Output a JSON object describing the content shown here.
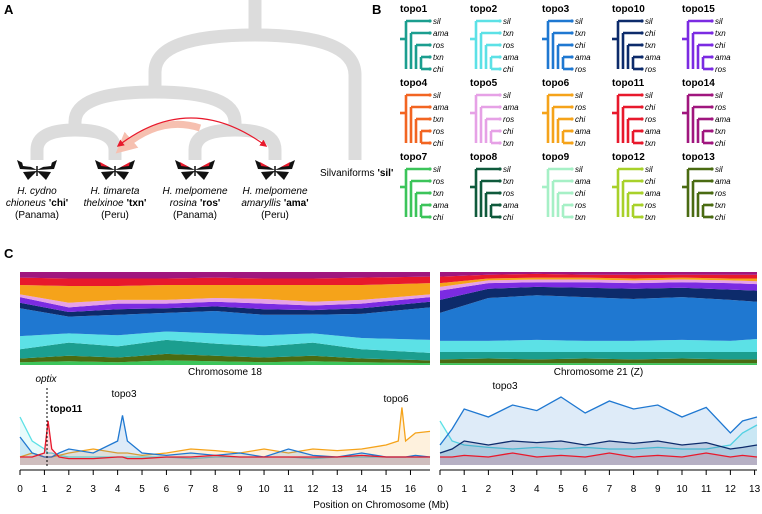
{
  "panel_a": {
    "label": "A",
    "taxa": [
      {
        "species": "H. cydno",
        "subspecies": "chioneus",
        "code": "'chi'",
        "location": "(Panama)"
      },
      {
        "species": "H. timareta",
        "subspecies": "thelxinoe",
        "code": "'txn'",
        "location": "(Peru)"
      },
      {
        "species": "H. melpomene",
        "subspecies": "rosina",
        "code": "'ros'",
        "location": "(Panama)"
      },
      {
        "species": "H. melpomene",
        "subspecies": "amaryllis",
        "code": "'ama'",
        "location": "(Peru)"
      }
    ],
    "outgroup": "Silvaniforms",
    "outgroup_code": "'sil'"
  },
  "panel_b": {
    "label": "B",
    "topologies": [
      {
        "name": "topo1",
        "color": "#1b9e8f",
        "tips": [
          "sil",
          "ama",
          "ros",
          "txn",
          "chi"
        ]
      },
      {
        "name": "topo2",
        "color": "#5ce1e6",
        "tips": [
          "sil",
          "txn",
          "ros",
          "ama",
          "chi"
        ]
      },
      {
        "name": "topo3",
        "color": "#1f78d1",
        "tips": [
          "sil",
          "txn",
          "chi",
          "ama",
          "ros"
        ]
      },
      {
        "name": "topo10",
        "color": "#0d2b6b",
        "tips": [
          "sil",
          "chi",
          "txn",
          "ama",
          "ros"
        ]
      },
      {
        "name": "topo15",
        "color": "#7b2be2",
        "tips": [
          "sil",
          "txn",
          "chi",
          "ama",
          "ros"
        ]
      },
      {
        "name": "topo4",
        "color": "#f26522",
        "tips": [
          "sil",
          "ama",
          "txn",
          "ros",
          "chi"
        ]
      },
      {
        "name": "topo5",
        "color": "#e6a1e6",
        "tips": [
          "sil",
          "ama",
          "ros",
          "chi",
          "txn"
        ]
      },
      {
        "name": "topo6",
        "color": "#f5a31a",
        "tips": [
          "sil",
          "ros",
          "chi",
          "ama",
          "txn"
        ]
      },
      {
        "name": "topo11",
        "color": "#e8192c",
        "tips": [
          "sil",
          "chi",
          "ros",
          "ama",
          "txn"
        ]
      },
      {
        "name": "topo14",
        "color": "#a0167e",
        "tips": [
          "sil",
          "ros",
          "ama",
          "txn",
          "chi"
        ]
      },
      {
        "name": "topo7",
        "color": "#3cc45a",
        "tips": [
          "sil",
          "ros",
          "txn",
          "ama",
          "chi"
        ]
      },
      {
        "name": "topo8",
        "color": "#0f5a3c",
        "tips": [
          "sil",
          "txn",
          "ros",
          "ama",
          "chi"
        ]
      },
      {
        "name": "topo9",
        "color": "#a6f0c6",
        "tips": [
          "sil",
          "ama",
          "chi",
          "ros",
          "txn"
        ]
      },
      {
        "name": "topo12",
        "color": "#a8d12a",
        "tips": [
          "sil",
          "chi",
          "ama",
          "ros",
          "txn"
        ]
      },
      {
        "name": "topo13",
        "color": "#4a6b12",
        "tips": [
          "sil",
          "ama",
          "ros",
          "txn",
          "chi"
        ]
      }
    ]
  },
  "panel_c": {
    "label": "C",
    "x_label": "Position on Chromosome (Mb)",
    "annotations": {
      "gene": "optix",
      "left_topo11": "topo11",
      "left_topo3": "topo3",
      "left_topo6": "topo6",
      "right_topo3": "topo3"
    },
    "chromosomes": [
      {
        "title": "Chromosome 18",
        "xlim": [
          0,
          16.8
        ],
        "xticks": [
          0,
          1,
          2,
          3,
          4,
          5,
          6,
          7,
          8,
          9,
          10,
          11,
          12,
          13,
          14,
          15,
          16
        ],
        "stack": {
          "type": "stacked_area",
          "ylim": [
            0,
            100
          ],
          "x": [
            0,
            2,
            4,
            6,
            8,
            10,
            12,
            14,
            16.8
          ],
          "series": [
            {
              "color": "#3cc45a",
              "values": [
                3,
                4,
                3,
                5,
                4,
                3,
                4,
                3,
                2
              ]
            },
            {
              "color": "#4a6b12",
              "values": [
                4,
                6,
                5,
                7,
                6,
                5,
                6,
                4,
                3
              ]
            },
            {
              "color": "#1b9e8f",
              "values": [
                10,
                14,
                12,
                15,
                13,
                12,
                14,
                10,
                8
              ]
            },
            {
              "color": "#5ce1e6",
              "values": [
                14,
                10,
                12,
                9,
                11,
                12,
                10,
                12,
                14
              ]
            },
            {
              "color": "#1f78d1",
              "values": [
                30,
                18,
                22,
                20,
                24,
                22,
                20,
                26,
                35
              ]
            },
            {
              "color": "#0d2b6b",
              "values": [
                6,
                5,
                6,
                5,
                5,
                6,
                5,
                6,
                6
              ]
            },
            {
              "color": "#7b2be2",
              "values": [
                6,
                5,
                6,
                5,
                5,
                6,
                5,
                5,
                5
              ]
            },
            {
              "color": "#e6a1e6",
              "values": [
                3,
                5,
                4,
                4,
                4,
                5,
                4,
                4,
                3
              ]
            },
            {
              "color": "#f5a31a",
              "values": [
                10,
                18,
                15,
                16,
                14,
                15,
                18,
                16,
                12
              ]
            },
            {
              "color": "#e8192c",
              "values": [
                8,
                8,
                8,
                7,
                8,
                7,
                7,
                8,
                7
              ]
            },
            {
              "color": "#a0167e",
              "values": [
                6,
                7,
                7,
                7,
                6,
                7,
                7,
                6,
                5
              ]
            }
          ]
        },
        "lines": {
          "type": "line",
          "ylim": [
            0,
            1
          ],
          "x": [
            0,
            0.5,
            1,
            1.15,
            1.3,
            1.6,
            2,
            3,
            4,
            4.2,
            4.4,
            5,
            6,
            7,
            8,
            9,
            10,
            11,
            12,
            13,
            14,
            15,
            15.5,
            15.65,
            15.8,
            16.2,
            16.8
          ],
          "series": [
            {
              "color": "#5ce1e6",
              "values": [
                0.6,
                0.3,
                0.2,
                0.15,
                0.15,
                0.12,
                0.1,
                0.1,
                0.1,
                0.1,
                0.1,
                0.1,
                0.1,
                0.08,
                0.1,
                0.1,
                0.1,
                0.1,
                0.08,
                0.1,
                0.1,
                0.1,
                0.1,
                0.1,
                0.1,
                0.1,
                0.1
              ]
            },
            {
              "color": "#f5a31a",
              "values": [
                0.1,
                0.15,
                0.1,
                0.1,
                0.1,
                0.12,
                0.15,
                0.2,
                0.15,
                0.15,
                0.15,
                0.12,
                0.15,
                0.2,
                0.18,
                0.15,
                0.2,
                0.15,
                0.2,
                0.18,
                0.2,
                0.25,
                0.3,
                0.72,
                0.3,
                0.4,
                0.42
              ]
            },
            {
              "color": "#1f78d1",
              "values": [
                0.35,
                0.15,
                0.1,
                0.1,
                0.1,
                0.15,
                0.2,
                0.15,
                0.3,
                0.62,
                0.3,
                0.15,
                0.12,
                0.15,
                0.12,
                0.15,
                0.1,
                0.2,
                0.12,
                0.1,
                0.15,
                0.1,
                0.1,
                0.1,
                0.1,
                0.12,
                0.1
              ]
            },
            {
              "color": "#e8192c",
              "values": [
                0.1,
                0.1,
                0.15,
                0.55,
                0.2,
                0.1,
                0.08,
                0.08,
                0.1,
                0.1,
                0.08,
                0.08,
                0.1,
                0.1,
                0.12,
                0.1,
                0.1,
                0.1,
                0.1,
                0.1,
                0.12,
                0.1,
                0.1,
                0.1,
                0.1,
                0.1,
                0.1
              ]
            }
          ]
        }
      },
      {
        "title": "Chromosome 21 (Z)",
        "xlim": [
          0,
          13.1
        ],
        "xticks": [
          0,
          1,
          2,
          3,
          4,
          5,
          6,
          7,
          8,
          9,
          10,
          11,
          12,
          13
        ],
        "stack": {
          "type": "stacked_area",
          "ylim": [
            0,
            100
          ],
          "x": [
            0,
            2,
            4,
            6,
            8,
            10,
            12,
            13.1
          ],
          "series": [
            {
              "color": "#3cc45a",
              "values": [
                2,
                2,
                2,
                2,
                2,
                2,
                2,
                2
              ]
            },
            {
              "color": "#4a6b12",
              "values": [
                4,
                5,
                4,
                5,
                4,
                5,
                4,
                4
              ]
            },
            {
              "color": "#1b9e8f",
              "values": [
                8,
                7,
                8,
                7,
                8,
                7,
                8,
                8
              ]
            },
            {
              "color": "#5ce1e6",
              "values": [
                12,
                12,
                13,
                12,
                12,
                13,
                12,
                14
              ]
            },
            {
              "color": "#1f78d1",
              "values": [
                30,
                46,
                48,
                47,
                45,
                46,
                44,
                40
              ]
            },
            {
              "color": "#0d2b6b",
              "values": [
                14,
                10,
                9,
                10,
                11,
                10,
                11,
                12
              ]
            },
            {
              "color": "#7b2be2",
              "values": [
                10,
                6,
                5,
                6,
                6,
                6,
                7,
                7
              ]
            },
            {
              "color": "#e6a1e6",
              "values": [
                4,
                3,
                3,
                3,
                3,
                3,
                3,
                3
              ]
            },
            {
              "color": "#f5a31a",
              "values": [
                4,
                2,
                2,
                2,
                2,
                2,
                2,
                3
              ]
            },
            {
              "color": "#e8192c",
              "values": [
                7,
                4,
                4,
                3,
                4,
                3,
                4,
                4
              ]
            },
            {
              "color": "#a0167e",
              "values": [
                5,
                3,
                2,
                3,
                3,
                3,
                3,
                3
              ]
            }
          ]
        },
        "lines": {
          "type": "line",
          "ylim": [
            0,
            1
          ],
          "x": [
            0,
            0.5,
            1,
            2,
            3,
            4,
            5,
            6,
            7,
            8,
            9,
            10,
            11,
            12,
            12.5,
            13.1
          ],
          "series": [
            {
              "color": "#5ce1e6",
              "values": [
                0.55,
                0.3,
                0.25,
                0.22,
                0.2,
                0.22,
                0.2,
                0.22,
                0.2,
                0.2,
                0.22,
                0.2,
                0.2,
                0.25,
                0.4,
                0.5
              ]
            },
            {
              "color": "#1f78d1",
              "values": [
                0.25,
                0.45,
                0.7,
                0.6,
                0.75,
                0.68,
                0.85,
                0.65,
                0.8,
                0.7,
                0.75,
                0.6,
                0.72,
                0.4,
                0.55,
                0.6
              ]
            },
            {
              "color": "#0d2b6b",
              "values": [
                0.15,
                0.2,
                0.3,
                0.25,
                0.3,
                0.28,
                0.3,
                0.25,
                0.3,
                0.27,
                0.3,
                0.25,
                0.28,
                0.2,
                0.22,
                0.25
              ]
            },
            {
              "color": "#e8192c",
              "values": [
                0.1,
                0.1,
                0.12,
                0.1,
                0.15,
                0.1,
                0.12,
                0.1,
                0.15,
                0.1,
                0.12,
                0.1,
                0.15,
                0.1,
                0.12,
                0.1
              ]
            }
          ]
        }
      }
    ]
  }
}
